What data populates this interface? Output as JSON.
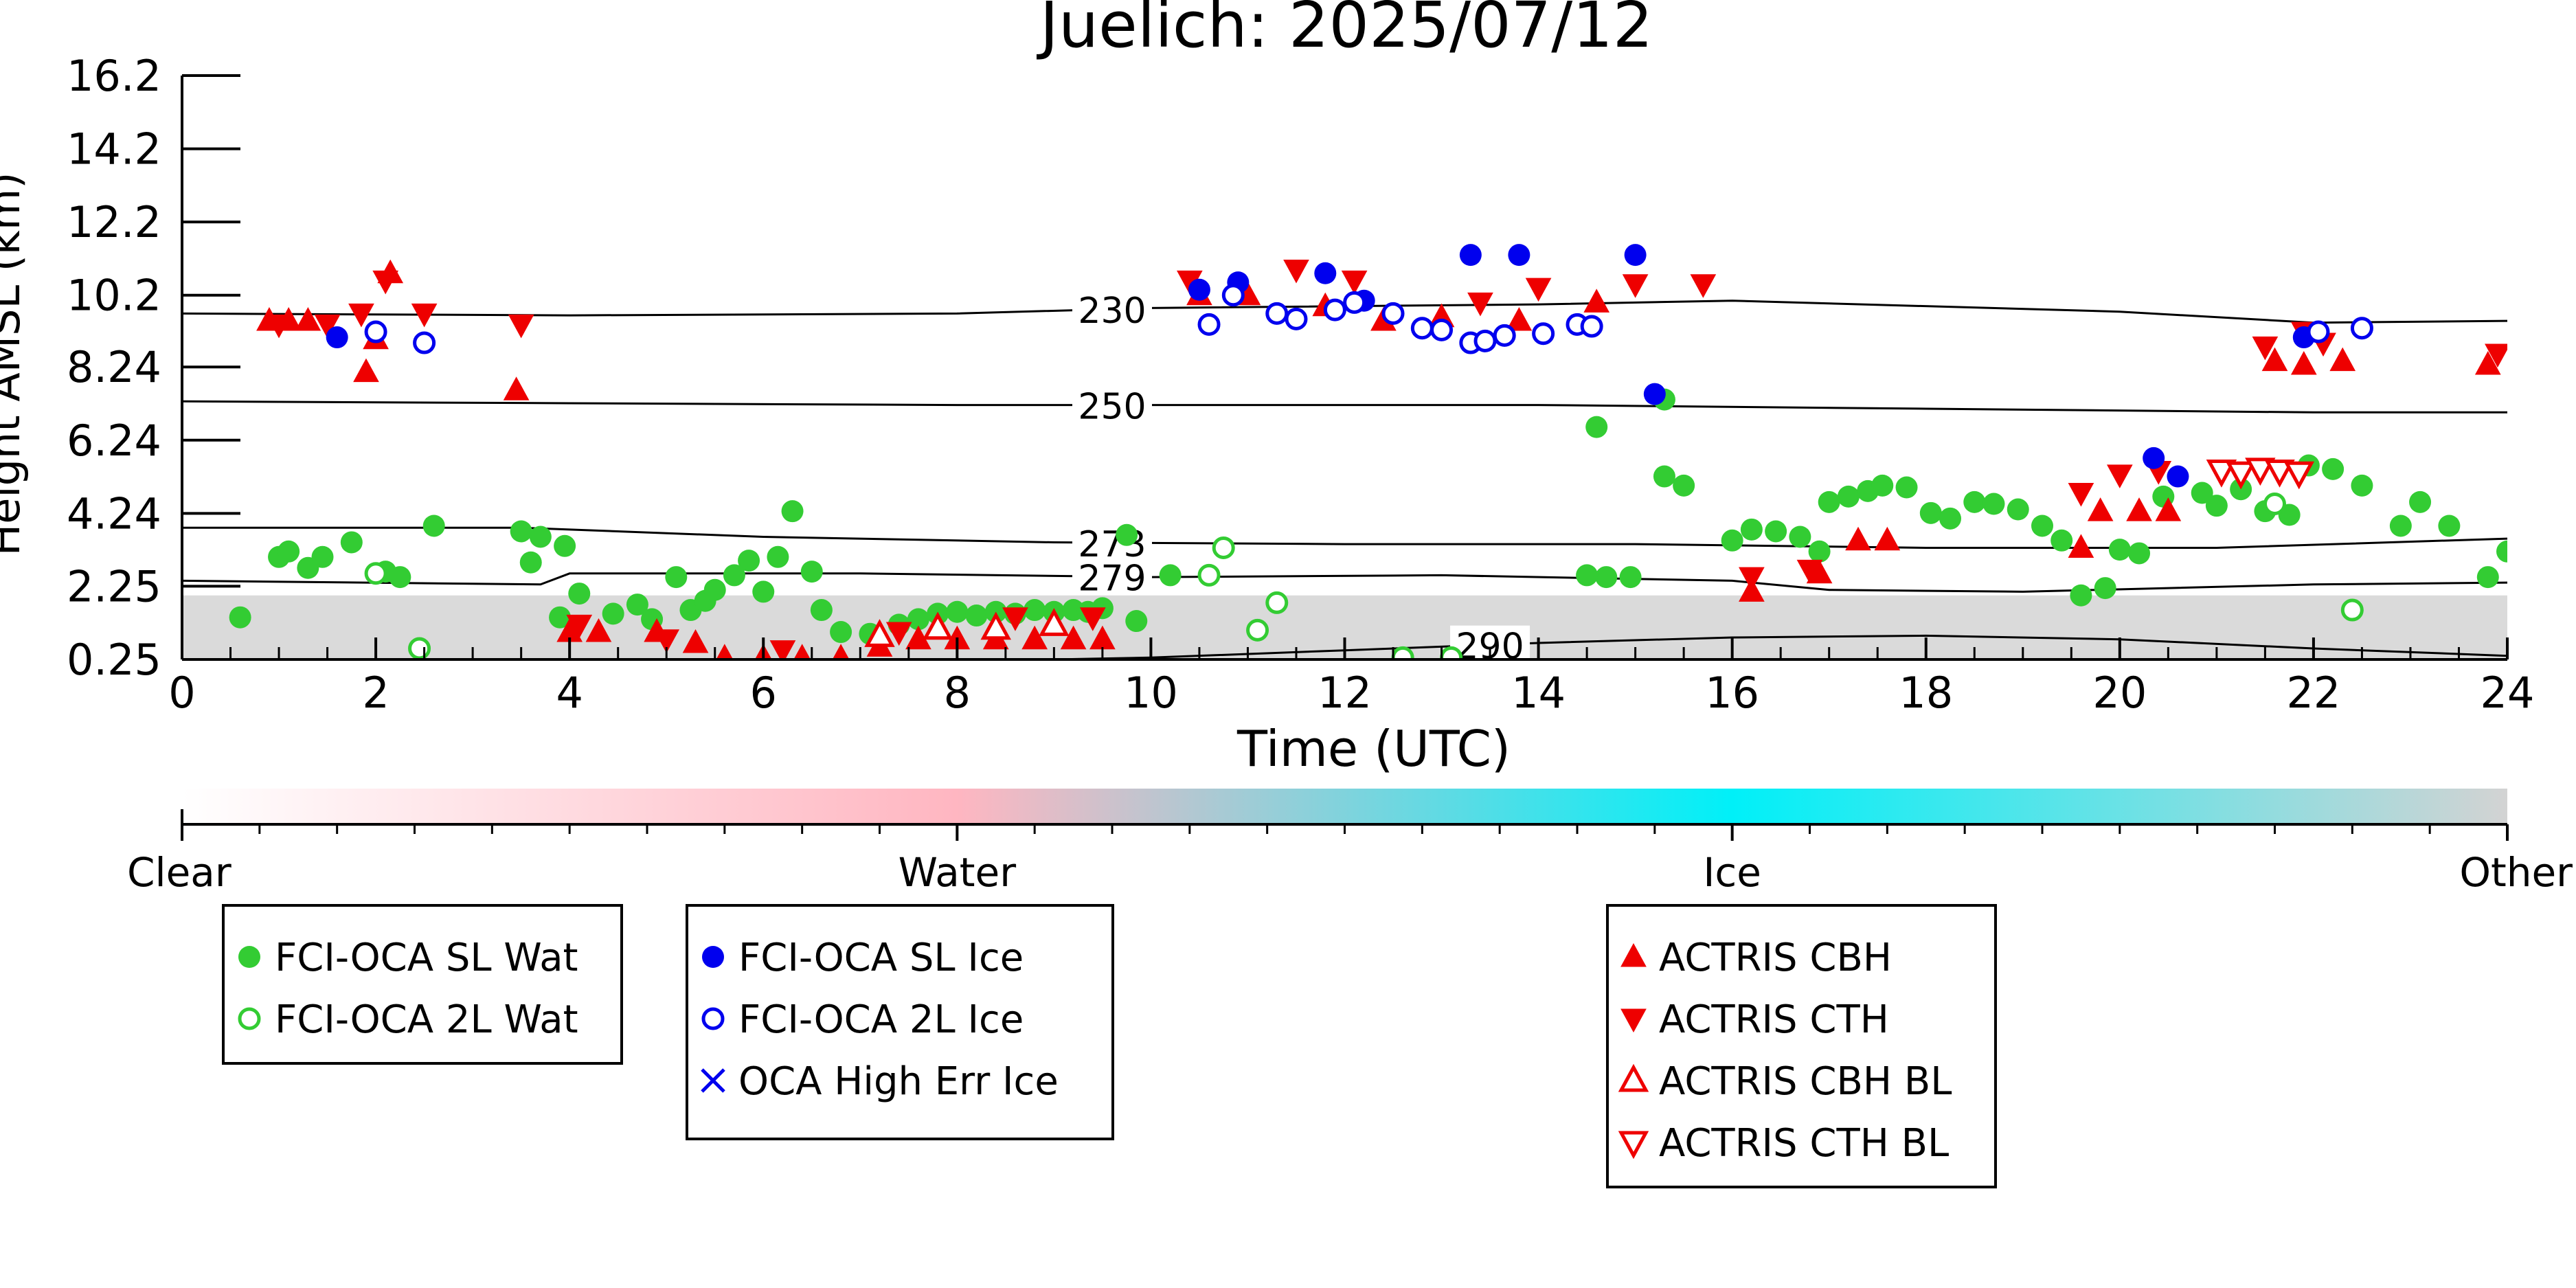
{
  "chart_data": {
    "type": "scatter",
    "title": "Juelich: 2025/07/12",
    "xlabel": "Time (UTC)",
    "ylabel": "Height AMSL (km)",
    "xlim": [
      0,
      24
    ],
    "ylim": [
      0.25,
      16.2
    ],
    "x_ticks": [
      0,
      2,
      4,
      6,
      8,
      10,
      12,
      14,
      16,
      18,
      20,
      22,
      24
    ],
    "x_tick_labels": [
      "0",
      "2",
      "4",
      "6",
      "8",
      "10",
      "12",
      "14",
      "16",
      "18",
      "20",
      "22",
      "24"
    ],
    "y_ticks": [
      0.25,
      2.25,
      4.24,
      6.24,
      8.24,
      10.2,
      12.2,
      14.2,
      16.2
    ],
    "y_tick_labels": [
      "0.25",
      "2.25",
      "4.24",
      "6.24",
      "8.24",
      "10.2",
      "12.2",
      "14.2",
      "16.2"
    ],
    "isotherms": [
      {
        "label": "230",
        "label_x": 9.6,
        "points": [
          [
            0,
            9.7
          ],
          [
            4,
            9.65
          ],
          [
            8,
            9.7
          ],
          [
            10,
            9.85
          ],
          [
            14,
            9.95
          ],
          [
            16,
            10.05
          ],
          [
            20,
            9.75
          ],
          [
            22,
            9.45
          ],
          [
            24,
            9.5
          ]
        ]
      },
      {
        "label": "250",
        "label_x": 9.6,
        "points": [
          [
            0,
            7.3
          ],
          [
            4,
            7.25
          ],
          [
            8,
            7.2
          ],
          [
            10,
            7.2
          ],
          [
            14,
            7.2
          ],
          [
            18,
            7.1
          ],
          [
            22,
            7.0
          ],
          [
            24,
            7.0
          ]
        ]
      },
      {
        "label": "273",
        "label_x": 9.6,
        "points": [
          [
            0,
            3.85
          ],
          [
            3.5,
            3.85
          ],
          [
            6,
            3.6
          ],
          [
            9,
            3.45
          ],
          [
            12,
            3.4
          ],
          [
            15,
            3.4
          ],
          [
            18,
            3.3
          ],
          [
            21,
            3.3
          ],
          [
            24,
            3.55
          ]
        ]
      },
      {
        "label": "279",
        "label_x": 9.6,
        "points": [
          [
            0,
            2.4
          ],
          [
            3.7,
            2.3
          ],
          [
            4,
            2.6
          ],
          [
            7,
            2.6
          ],
          [
            10,
            2.5
          ],
          [
            13,
            2.55
          ],
          [
            16,
            2.4
          ],
          [
            17,
            2.15
          ],
          [
            19,
            2.1
          ],
          [
            22,
            2.3
          ],
          [
            24,
            2.35
          ]
        ]
      },
      {
        "label": "290",
        "label_x": 13.5,
        "points": [
          [
            9,
            0.25
          ],
          [
            10,
            0.3
          ],
          [
            12,
            0.5
          ],
          [
            14,
            0.7
          ],
          [
            16,
            0.85
          ],
          [
            18,
            0.9
          ],
          [
            20,
            0.8
          ],
          [
            22,
            0.55
          ],
          [
            24,
            0.35
          ]
        ]
      }
    ],
    "classification_colorbar": {
      "labels": [
        "Clear",
        "Water",
        "Ice",
        "Other"
      ],
      "colors": [
        "#ffffff",
        "#ffb6c1",
        "#00f0f8",
        "#d3d3d3"
      ]
    },
    "series": [
      {
        "name": "FCI-OCA SL Wat",
        "marker": "filled-circle",
        "color": "#33cc33",
        "legend_group": 1,
        "points": [
          [
            0.6,
            1.4
          ],
          [
            1.0,
            3.05
          ],
          [
            1.1,
            3.2
          ],
          [
            1.3,
            2.75
          ],
          [
            1.45,
            3.05
          ],
          [
            1.75,
            3.45
          ],
          [
            2.1,
            2.65
          ],
          [
            2.25,
            2.5
          ],
          [
            2.6,
            3.9
          ],
          [
            3.5,
            3.75
          ],
          [
            3.6,
            2.9
          ],
          [
            3.7,
            3.6
          ],
          [
            3.95,
            3.35
          ],
          [
            3.9,
            1.4
          ],
          [
            4.1,
            2.05
          ],
          [
            4.45,
            1.5
          ],
          [
            4.7,
            1.75
          ],
          [
            4.85,
            1.35
          ],
          [
            5.1,
            2.5
          ],
          [
            5.25,
            1.6
          ],
          [
            5.4,
            1.85
          ],
          [
            5.5,
            2.15
          ],
          [
            5.7,
            2.55
          ],
          [
            5.85,
            2.95
          ],
          [
            6.0,
            2.1
          ],
          [
            6.15,
            3.05
          ],
          [
            6.3,
            4.3
          ],
          [
            6.5,
            2.65
          ],
          [
            6.6,
            1.6
          ],
          [
            6.8,
            1.0
          ],
          [
            7.1,
            0.95
          ],
          [
            7.4,
            1.2
          ],
          [
            7.6,
            1.35
          ],
          [
            7.8,
            1.5
          ],
          [
            8.0,
            1.55
          ],
          [
            8.2,
            1.45
          ],
          [
            8.4,
            1.55
          ],
          [
            8.6,
            1.5
          ],
          [
            8.8,
            1.6
          ],
          [
            9.0,
            1.55
          ],
          [
            9.2,
            1.6
          ],
          [
            9.35,
            1.55
          ],
          [
            9.5,
            1.65
          ],
          [
            9.75,
            3.65
          ],
          [
            9.85,
            1.3
          ],
          [
            10.2,
            2.55
          ],
          [
            14.6,
            6.6
          ],
          [
            15.3,
            7.35
          ],
          [
            14.95,
            2.5
          ],
          [
            14.7,
            2.5
          ],
          [
            14.5,
            2.55
          ],
          [
            15.3,
            5.25
          ],
          [
            15.5,
            5.0
          ],
          [
            16.0,
            3.5
          ],
          [
            16.2,
            3.8
          ],
          [
            16.45,
            3.75
          ],
          [
            16.7,
            3.6
          ],
          [
            16.9,
            3.2
          ],
          [
            17.0,
            4.55
          ],
          [
            17.2,
            4.7
          ],
          [
            17.4,
            4.85
          ],
          [
            17.55,
            5.0
          ],
          [
            17.8,
            4.95
          ],
          [
            18.05,
            4.25
          ],
          [
            18.25,
            4.1
          ],
          [
            18.5,
            4.55
          ],
          [
            18.7,
            4.5
          ],
          [
            18.95,
            4.35
          ],
          [
            19.2,
            3.9
          ],
          [
            19.4,
            3.5
          ],
          [
            19.6,
            2.0
          ],
          [
            19.85,
            2.2
          ],
          [
            20.0,
            3.25
          ],
          [
            20.2,
            3.15
          ],
          [
            20.45,
            4.7
          ],
          [
            20.85,
            4.8
          ],
          [
            21.0,
            4.45
          ],
          [
            21.25,
            4.9
          ],
          [
            21.5,
            4.3
          ],
          [
            21.75,
            4.2
          ],
          [
            21.95,
            5.55
          ],
          [
            22.2,
            5.45
          ],
          [
            22.5,
            5.0
          ],
          [
            22.9,
            3.9
          ],
          [
            23.1,
            4.55
          ],
          [
            23.4,
            3.9
          ],
          [
            23.8,
            2.5
          ],
          [
            24.0,
            3.2
          ]
        ]
      },
      {
        "name": "FCI-OCA 2L Wat",
        "marker": "open-circle",
        "color": "#33cc33",
        "legend_group": 1,
        "points": [
          [
            2.0,
            2.6
          ],
          [
            2.45,
            0.55
          ],
          [
            10.6,
            2.55
          ],
          [
            10.75,
            3.3
          ],
          [
            11.1,
            1.05
          ],
          [
            11.3,
            1.8
          ],
          [
            12.6,
            0.3
          ],
          [
            13.1,
            0.3
          ],
          [
            21.6,
            4.5
          ],
          [
            22.4,
            1.6
          ]
        ]
      },
      {
        "name": "FCI-OCA SL Ice",
        "marker": "filled-circle",
        "color": "#0000ee",
        "legend_group": 2,
        "points": [
          [
            1.6,
            9.05
          ],
          [
            10.5,
            10.35
          ],
          [
            10.9,
            10.55
          ],
          [
            11.8,
            10.8
          ],
          [
            12.2,
            10.05
          ],
          [
            13.3,
            11.3
          ],
          [
            13.8,
            11.3
          ],
          [
            15.0,
            11.3
          ],
          [
            15.2,
            7.5
          ],
          [
            20.35,
            5.75
          ],
          [
            20.6,
            5.25
          ],
          [
            21.9,
            9.05
          ]
        ]
      },
      {
        "name": "FCI-OCA 2L Ice",
        "marker": "open-circle",
        "color": "#0000ee",
        "legend_group": 2,
        "points": [
          [
            2.0,
            9.2
          ],
          [
            2.5,
            8.9
          ],
          [
            10.6,
            9.4
          ],
          [
            10.85,
            10.2
          ],
          [
            11.3,
            9.7
          ],
          [
            11.5,
            9.55
          ],
          [
            11.9,
            9.8
          ],
          [
            12.1,
            10.0
          ],
          [
            12.5,
            9.7
          ],
          [
            12.8,
            9.3
          ],
          [
            13.0,
            9.25
          ],
          [
            13.3,
            8.9
          ],
          [
            13.45,
            8.95
          ],
          [
            13.65,
            9.1
          ],
          [
            14.05,
            9.15
          ],
          [
            14.4,
            9.4
          ],
          [
            14.55,
            9.35
          ],
          [
            22.05,
            9.2
          ],
          [
            22.5,
            9.3
          ]
        ]
      },
      {
        "name": "OCA High Err Ice",
        "marker": "cross",
        "color": "#0000ee",
        "legend_group": 2,
        "points": []
      },
      {
        "name": "ACTRIS CBH",
        "marker": "filled-triangle-up",
        "color": "#ee0000",
        "legend_group": 3,
        "points": [
          [
            0.9,
            9.5
          ],
          [
            1.1,
            9.5
          ],
          [
            1.3,
            9.5
          ],
          [
            1.9,
            8.1
          ],
          [
            2.0,
            9.0
          ],
          [
            2.15,
            10.8
          ],
          [
            3.45,
            7.6
          ],
          [
            4.0,
            1.0
          ],
          [
            4.3,
            1.0
          ],
          [
            4.9,
            1.0
          ],
          [
            5.3,
            0.7
          ],
          [
            5.6,
            0.3
          ],
          [
            6.0,
            0.3
          ],
          [
            6.4,
            0.3
          ],
          [
            6.8,
            0.3
          ],
          [
            7.2,
            0.6
          ],
          [
            7.6,
            0.8
          ],
          [
            8.0,
            0.8
          ],
          [
            8.4,
            0.8
          ],
          [
            8.8,
            0.8
          ],
          [
            9.2,
            0.8
          ],
          [
            9.5,
            0.8
          ],
          [
            10.5,
            10.2
          ],
          [
            11.0,
            10.2
          ],
          [
            11.8,
            9.9
          ],
          [
            12.4,
            9.5
          ],
          [
            13.0,
            9.6
          ],
          [
            13.8,
            9.5
          ],
          [
            14.6,
            10.0
          ],
          [
            16.2,
            2.1
          ],
          [
            16.9,
            2.6
          ],
          [
            17.3,
            3.5
          ],
          [
            17.6,
            3.5
          ],
          [
            19.6,
            3.3
          ],
          [
            19.8,
            4.3
          ],
          [
            20.2,
            4.3
          ],
          [
            20.5,
            4.3
          ],
          [
            21.6,
            8.4
          ],
          [
            21.9,
            8.3
          ],
          [
            22.3,
            8.4
          ],
          [
            23.8,
            8.3
          ]
        ]
      },
      {
        "name": "ACTRIS CTH",
        "marker": "filled-triangle-down",
        "color": "#ee0000",
        "legend_group": 3,
        "points": [
          [
            1.0,
            9.4
          ],
          [
            1.5,
            9.4
          ],
          [
            1.85,
            9.7
          ],
          [
            2.1,
            10.6
          ],
          [
            2.5,
            9.7
          ],
          [
            3.5,
            9.4
          ],
          [
            4.1,
            1.2
          ],
          [
            5.0,
            0.8
          ],
          [
            6.2,
            0.5
          ],
          [
            7.4,
            1.0
          ],
          [
            8.6,
            1.4
          ],
          [
            9.4,
            1.4
          ],
          [
            10.4,
            10.6
          ],
          [
            11.5,
            10.9
          ],
          [
            12.1,
            10.6
          ],
          [
            13.4,
            10.0
          ],
          [
            14.0,
            10.4
          ],
          [
            15.0,
            10.5
          ],
          [
            15.7,
            10.5
          ],
          [
            16.2,
            2.5
          ],
          [
            16.8,
            2.7
          ],
          [
            19.6,
            4.8
          ],
          [
            20.0,
            5.3
          ],
          [
            20.4,
            5.4
          ],
          [
            21.5,
            8.8
          ],
          [
            21.9,
            9.2
          ],
          [
            22.1,
            8.9
          ],
          [
            23.9,
            8.6
          ]
        ]
      },
      {
        "name": "ACTRIS CBH BL",
        "marker": "open-triangle-up",
        "color": "#ee0000",
        "legend_group": 3,
        "points": [
          [
            7.2,
            0.9
          ],
          [
            7.8,
            1.1
          ],
          [
            8.4,
            1.1
          ],
          [
            9.0,
            1.2
          ]
        ]
      },
      {
        "name": "ACTRIS CTH BL",
        "marker": "open-triangle-down",
        "color": "#ee0000",
        "legend_group": 3,
        "points": [
          [
            21.05,
            5.4
          ],
          [
            21.25,
            5.35
          ],
          [
            21.45,
            5.45
          ],
          [
            21.65,
            5.4
          ],
          [
            21.85,
            5.35
          ]
        ]
      }
    ],
    "legend_groups": [
      {
        "entries": [
          "FCI-OCA SL Wat",
          "FCI-OCA 2L Wat"
        ]
      },
      {
        "entries": [
          "FCI-OCA SL Ice",
          "FCI-OCA 2L Ice",
          "OCA High Err Ice"
        ]
      },
      {
        "entries": [
          "ACTRIS CBH",
          "ACTRIS CTH",
          "ACTRIS CBH BL",
          "ACTRIS CTH BL"
        ]
      }
    ],
    "grid": false,
    "legend_placement": "bottom"
  }
}
